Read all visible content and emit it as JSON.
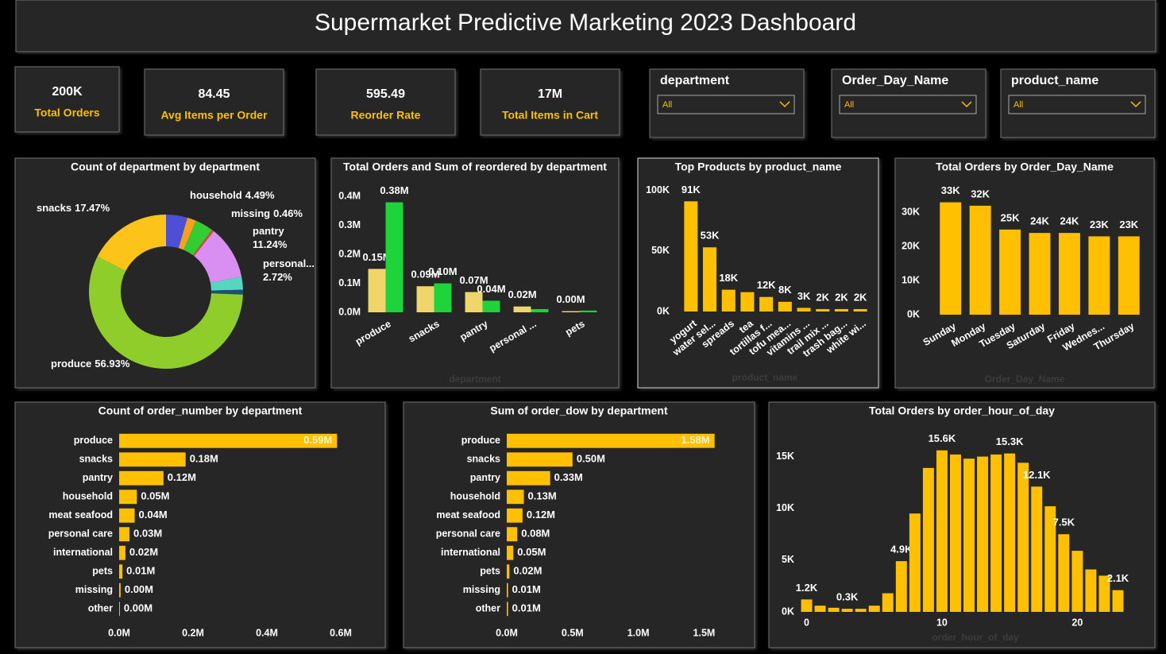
{
  "header": {
    "title": "Supermarket Predictive Marketing 2023 Dashboard"
  },
  "kpis": [
    {
      "value": "200K",
      "label": "Total Orders"
    },
    {
      "value": "84.45",
      "label": "Avg Items per Order"
    },
    {
      "value": "595.49",
      "label": "Reorder Rate"
    },
    {
      "value": "17M",
      "label": "Total Items in Cart"
    }
  ],
  "filters": [
    {
      "label": "department",
      "selection": "All"
    },
    {
      "label": "Order_Day_Name",
      "selection": "All"
    },
    {
      "label": "product_name",
      "selection": "All"
    }
  ],
  "chart_data": [
    {
      "type": "donut",
      "title": "Count of department by department",
      "categories": [
        "household",
        null,
        null,
        "missing",
        "pantry",
        "personal...",
        null,
        "produce",
        "snacks"
      ],
      "values": [
        4.49,
        1.9,
        3.8,
        0.46,
        11.24,
        2.72,
        1.0,
        56.93,
        17.47
      ],
      "value_labels": [
        "4.49%",
        null,
        null,
        "0.46%",
        "11.24%",
        "2.72%",
        null,
        "56.93%",
        "17.47%"
      ],
      "colors": [
        "#4d4fd6",
        "#f5a01e",
        "#33cc33",
        "#e0403b",
        "#d98ff2",
        "#55d6bf",
        "#1f4e79",
        "#8fce2a",
        "#fcc419"
      ]
    },
    {
      "type": "bar",
      "title": "Total Orders and Sum of reordered by department",
      "x_label": "department",
      "categories": [
        "produce",
        "snacks",
        "pantry",
        "personal ...",
        "pets"
      ],
      "series": [
        {
          "color": "#efd56a",
          "values": [
            150000,
            90000,
            70000,
            20000,
            4000
          ],
          "value_labels": [
            "0.15M",
            "0.09M",
            "0.07M",
            "0.02M",
            "0.00M"
          ]
        },
        {
          "color": "#1fd33a",
          "values": [
            380000,
            100000,
            40000,
            11000,
            6000
          ],
          "value_labels": [
            "0.38M",
            "0.10M",
            "0.04M",
            null,
            null
          ]
        }
      ],
      "ylim": [
        0,
        420000
      ],
      "yticks": [
        {
          "value": 0,
          "label": "0.0M"
        },
        {
          "value": 100000,
          "label": "0.1M"
        },
        {
          "value": 200000,
          "label": "0.2M"
        },
        {
          "value": 300000,
          "label": "0.3M"
        },
        {
          "value": 400000,
          "label": "0.4M"
        }
      ]
    },
    {
      "type": "bar",
      "title": "Top Products by product_name",
      "x_label": "product_name",
      "color": "#fec000",
      "categories": [
        "yogurt",
        "water sel...",
        "spreads",
        "tea",
        "tortillas f...",
        "tofu mea...",
        "vitamins ...",
        "trail mix ...",
        "trash bag...",
        "white wi..."
      ],
      "values": [
        91000,
        53000,
        18000,
        16000,
        12000,
        8000,
        3000,
        2000,
        2000,
        2000
      ],
      "value_labels": [
        "91K",
        "53K",
        "18K",
        null,
        "12K",
        "8K",
        "3K",
        "2K",
        "2K",
        "2K"
      ],
      "ylim": [
        0,
        105000
      ],
      "yticks": [
        {
          "value": 0,
          "label": "0K"
        },
        {
          "value": 50000,
          "label": "50K"
        },
        {
          "value": 100000,
          "label": "100K"
        }
      ]
    },
    {
      "type": "bar",
      "title": "Total Orders by Order_Day_Name",
      "x_label": "Order_Day_Name",
      "color": "#fec000",
      "categories": [
        "Sunday",
        "Monday",
        "Tuesday",
        "Saturday",
        "Friday",
        "Wednes...",
        "Thursday"
      ],
      "values": [
        33000,
        32000,
        25000,
        24000,
        24000,
        23000,
        23000
      ],
      "value_labels": [
        "33K",
        "32K",
        "25K",
        "24K",
        "24K",
        "23K",
        "23K"
      ],
      "ylim": [
        0,
        35000
      ],
      "yticks": [
        {
          "value": 0,
          "label": "0K"
        },
        {
          "value": 10000,
          "label": "10K"
        },
        {
          "value": 20000,
          "label": "20K"
        },
        {
          "value": 30000,
          "label": "30K"
        }
      ]
    },
    {
      "type": "barh",
      "title": "Count of order_number by department",
      "color": "#fec000",
      "categories": [
        "produce",
        "snacks",
        "pantry",
        "household",
        "meat seafood",
        "personal care",
        "international",
        "pets",
        "missing",
        "other"
      ],
      "values": [
        590000,
        180000,
        120000,
        48000,
        42000,
        28000,
        17000,
        9000,
        4000,
        2000
      ],
      "value_labels": [
        "0.59M",
        "0.18M",
        "0.12M",
        "0.05M",
        "0.04M",
        "0.03M",
        "0.02M",
        "0.01M",
        "0.00M",
        "0.00M"
      ],
      "xlim": [
        0,
        600000
      ],
      "xticks": [
        {
          "value": 0,
          "label": "0.0M"
        },
        {
          "value": 200000,
          "label": "0.2M"
        },
        {
          "value": 400000,
          "label": "0.4M"
        },
        {
          "value": 600000,
          "label": "0.6M"
        }
      ]
    },
    {
      "type": "barh",
      "title": "Sum of order_dow by department",
      "color": "#fec000",
      "categories": [
        "produce",
        "snacks",
        "pantry",
        "household",
        "meat seafood",
        "personal care",
        "international",
        "pets",
        "missing",
        "other"
      ],
      "values": [
        1580000,
        500000,
        330000,
        130000,
        120000,
        80000,
        50000,
        20000,
        10000,
        10000
      ],
      "value_labels": [
        "1.58M",
        "0.50M",
        "0.33M",
        "0.13M",
        "0.12M",
        "0.08M",
        "0.05M",
        "0.02M",
        "0.01M",
        "0.01M"
      ],
      "xlim": [
        0,
        1600000
      ],
      "xticks": [
        {
          "value": 0,
          "label": "0.0M"
        },
        {
          "value": 500000,
          "label": "0.5M"
        },
        {
          "value": 1000000,
          "label": "1.0M"
        },
        {
          "value": 1500000,
          "label": "1.5M"
        }
      ]
    },
    {
      "type": "bar",
      "title": "Total Orders by order_hour_of_day",
      "x_label": "order_hour_of_day",
      "color": "#fec000",
      "x": [
        0,
        1,
        2,
        3,
        4,
        5,
        6,
        7,
        8,
        9,
        10,
        11,
        12,
        13,
        14,
        15,
        16,
        17,
        18,
        19,
        20,
        21,
        22,
        23
      ],
      "values": [
        1200,
        600,
        400,
        300,
        300,
        600,
        1800,
        4900,
        9500,
        13900,
        15600,
        15200,
        14800,
        15000,
        15200,
        15300,
        14400,
        12100,
        10200,
        7500,
        5900,
        4100,
        3500,
        2100
      ],
      "value_labels": [
        "1.2K",
        null,
        null,
        "0.3K",
        null,
        null,
        null,
        "4.9K",
        null,
        null,
        "15.6K",
        null,
        null,
        null,
        null,
        "15.3K",
        null,
        "12.1K",
        null,
        "7.5K",
        null,
        null,
        null,
        "2.1K"
      ],
      "xlim": [
        -0.5,
        23.5
      ],
      "xticks": [
        0,
        10,
        20
      ],
      "ylim": [
        0,
        16500
      ],
      "yticks": [
        {
          "value": 0,
          "label": "0K"
        },
        {
          "value": 5000,
          "label": "5K"
        },
        {
          "value": 10000,
          "label": "10K"
        },
        {
          "value": 15000,
          "label": "15K"
        }
      ]
    }
  ]
}
